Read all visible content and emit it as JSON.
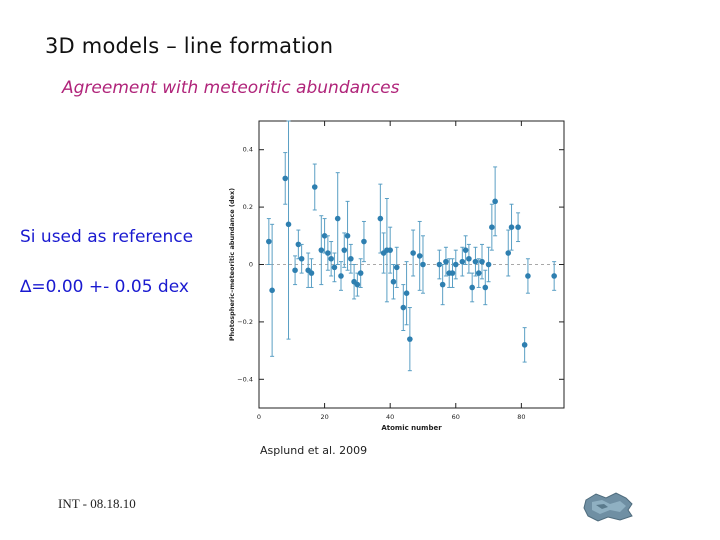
{
  "slide": {
    "title": "3D models – line formation",
    "subtitle": "Agreement with meteoritic abundances",
    "reference_note": "Si used as reference",
    "delta_note": "∆=0.00 +- 0.05 dex",
    "citation": "Asplund et al. 2009",
    "footer": "INT - 08.18.10"
  },
  "colors": {
    "marker": "#2e7fb0",
    "errorbar": "#5a9fc4",
    "zero_line": "#a8a8a8",
    "title": "#111111",
    "subtitle": "#b0247a",
    "note": "#1a1ad0"
  },
  "chart_data": {
    "type": "scatter",
    "xlabel": "Atomic number",
    "ylabel": "Photospheric–meteoritic abundance (dex)",
    "xlim": [
      0,
      93
    ],
    "ylim": [
      -0.5,
      0.5
    ],
    "xticks": [
      0,
      20,
      40,
      60,
      80
    ],
    "yticks": [
      -0.4,
      -0.2,
      0,
      0.2,
      0.4
    ],
    "ytick_labels": [
      "−0.4",
      "−0.2",
      "0",
      "0.2",
      "0.4"
    ],
    "zero_line": true,
    "points": [
      {
        "x": 3,
        "y": 0.08,
        "err": 0.08
      },
      {
        "x": 4,
        "y": -0.09,
        "err": 0.23
      },
      {
        "x": 8,
        "y": 0.3,
        "err": 0.09
      },
      {
        "x": 9,
        "y": 0.14,
        "err": 0.4
      },
      {
        "x": 11,
        "y": -0.02,
        "err": 0.05
      },
      {
        "x": 12,
        "y": 0.07,
        "err": 0.05
      },
      {
        "x": 13,
        "y": 0.02,
        "err": 0.05
      },
      {
        "x": 15,
        "y": -0.02,
        "err": 0.06
      },
      {
        "x": 16,
        "y": -0.03,
        "err": 0.05
      },
      {
        "x": 17,
        "y": 0.27,
        "err": 0.08
      },
      {
        "x": 19,
        "y": 0.05,
        "err": 0.12
      },
      {
        "x": 20,
        "y": 0.1,
        "err": 0.06
      },
      {
        "x": 21,
        "y": 0.04,
        "err": 0.06
      },
      {
        "x": 22,
        "y": 0.02,
        "err": 0.06
      },
      {
        "x": 23,
        "y": -0.01,
        "err": 0.05
      },
      {
        "x": 24,
        "y": 0.16,
        "err": 0.16
      },
      {
        "x": 25,
        "y": -0.04,
        "err": 0.05
      },
      {
        "x": 26,
        "y": 0.05,
        "err": 0.06
      },
      {
        "x": 27,
        "y": 0.1,
        "err": 0.12
      },
      {
        "x": 28,
        "y": 0.02,
        "err": 0.05
      },
      {
        "x": 29,
        "y": -0.06,
        "err": 0.06
      },
      {
        "x": 30,
        "y": -0.07,
        "err": 0.04
      },
      {
        "x": 31,
        "y": -0.03,
        "err": 0.05
      },
      {
        "x": 32,
        "y": 0.08,
        "err": 0.07
      },
      {
        "x": 37,
        "y": 0.16,
        "err": 0.12
      },
      {
        "x": 38,
        "y": 0.04,
        "err": 0.07
      },
      {
        "x": 39,
        "y": 0.05,
        "err": 0.18
      },
      {
        "x": 40,
        "y": 0.05,
        "err": 0.08
      },
      {
        "x": 41,
        "y": -0.06,
        "err": 0.06
      },
      {
        "x": 42,
        "y": -0.01,
        "err": 0.07
      },
      {
        "x": 44,
        "y": -0.15,
        "err": 0.08
      },
      {
        "x": 45,
        "y": -0.1,
        "err": 0.11
      },
      {
        "x": 46,
        "y": -0.26,
        "err": 0.11
      },
      {
        "x": 47,
        "y": 0.04,
        "err": 0.08
      },
      {
        "x": 49,
        "y": 0.03,
        "err": 0.12
      },
      {
        "x": 50,
        "y": 0.0,
        "err": 0.1
      },
      {
        "x": 55,
        "y": 0.0,
        "err": 0.05
      },
      {
        "x": 56,
        "y": -0.07,
        "err": 0.07
      },
      {
        "x": 57,
        "y": 0.01,
        "err": 0.05
      },
      {
        "x": 58,
        "y": -0.03,
        "err": 0.05
      },
      {
        "x": 59,
        "y": -0.03,
        "err": 0.05
      },
      {
        "x": 60,
        "y": 0.0,
        "err": 0.05
      },
      {
        "x": 62,
        "y": 0.01,
        "err": 0.05
      },
      {
        "x": 63,
        "y": 0.05,
        "err": 0.05
      },
      {
        "x": 64,
        "y": 0.02,
        "err": 0.05
      },
      {
        "x": 65,
        "y": -0.08,
        "err": 0.05
      },
      {
        "x": 66,
        "y": 0.01,
        "err": 0.05
      },
      {
        "x": 67,
        "y": -0.03,
        "err": 0.05
      },
      {
        "x": 68,
        "y": 0.01,
        "err": 0.06
      },
      {
        "x": 69,
        "y": -0.08,
        "err": 0.06
      },
      {
        "x": 70,
        "y": 0.0,
        "err": 0.06
      },
      {
        "x": 71,
        "y": 0.13,
        "err": 0.08
      },
      {
        "x": 72,
        "y": 0.22,
        "err": 0.12
      },
      {
        "x": 76,
        "y": 0.04,
        "err": 0.08
      },
      {
        "x": 77,
        "y": 0.13,
        "err": 0.08
      },
      {
        "x": 79,
        "y": 0.13,
        "err": 0.05
      },
      {
        "x": 81,
        "y": -0.28,
        "err": 0.06
      },
      {
        "x": 82,
        "y": -0.04,
        "err": 0.06
      },
      {
        "x": 90,
        "y": -0.04,
        "err": 0.05
      }
    ]
  }
}
